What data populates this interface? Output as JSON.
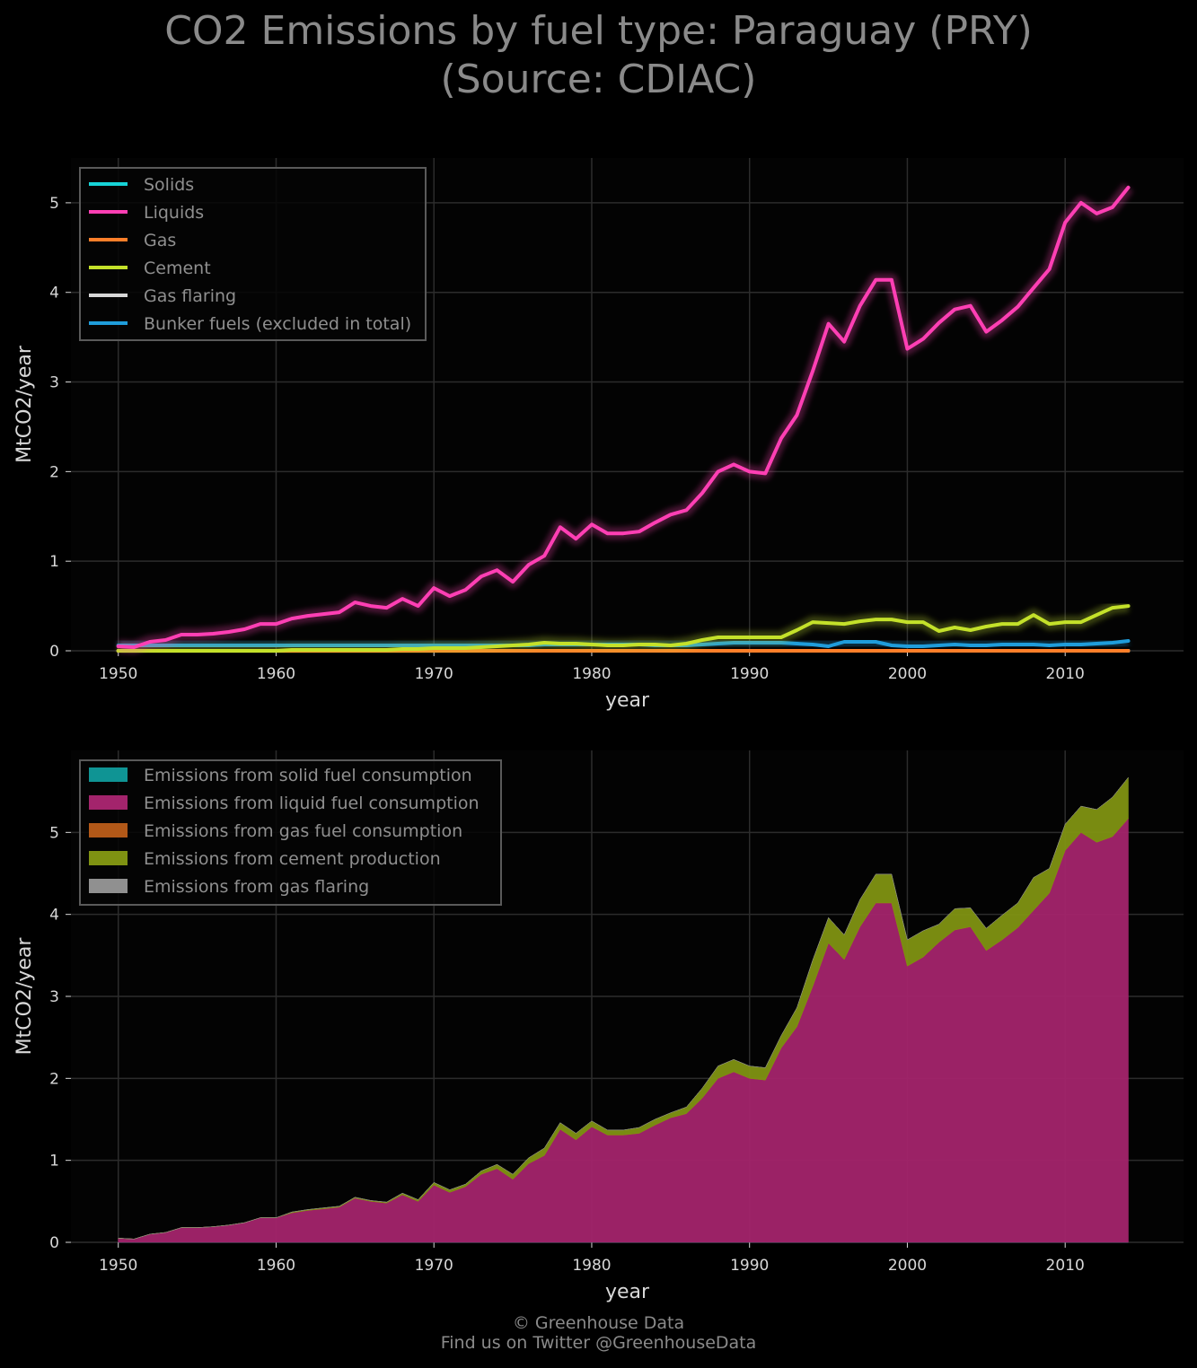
{
  "title_line1": "CO2 Emissions by fuel type: Paraguay (PRY)",
  "title_line2": "(Source: CDIAC)",
  "footer_line1": "© Greenhouse Data",
  "footer_line2": "Find us on Twitter @GreenhouseData",
  "chart_data": [
    {
      "type": "line",
      "xlabel": "year",
      "ylabel": "MtCO2/year",
      "xlim": [
        1947,
        2017.5
      ],
      "ylim": [
        0,
        5.5
      ],
      "xticks": [
        1950,
        1960,
        1970,
        1980,
        1990,
        2000,
        2010
      ],
      "yticks": [
        0,
        1,
        2,
        3,
        4,
        5
      ],
      "grid": true,
      "legend_position": "top-left",
      "x": [
        1950,
        1951,
        1952,
        1953,
        1954,
        1955,
        1956,
        1957,
        1958,
        1959,
        1960,
        1961,
        1962,
        1963,
        1964,
        1965,
        1966,
        1967,
        1968,
        1969,
        1970,
        1971,
        1972,
        1973,
        1974,
        1975,
        1976,
        1977,
        1978,
        1979,
        1980,
        1981,
        1982,
        1983,
        1984,
        1985,
        1986,
        1987,
        1988,
        1989,
        1990,
        1991,
        1992,
        1993,
        1994,
        1995,
        1996,
        1997,
        1998,
        1999,
        2000,
        2001,
        2002,
        2003,
        2004,
        2005,
        2006,
        2007,
        2008,
        2009,
        2010,
        2011,
        2012,
        2013,
        2014
      ],
      "series": [
        {
          "name": "Solids",
          "color": "#17d4d8",
          "values": [
            0.0,
            0.0,
            0.0,
            0.0,
            0.0,
            0.0,
            0.0,
            0.0,
            0.0,
            0.0,
            0.0,
            0.0,
            0.0,
            0.0,
            0.0,
            0.0,
            0.0,
            0.0,
            0.0,
            0.0,
            0.0,
            0.0,
            0.0,
            0.0,
            0.0,
            0.0,
            0.0,
            0.0,
            0.0,
            0.0,
            0.0,
            0.0,
            0.0,
            0.0,
            0.0,
            0.0,
            0.0,
            0.0,
            0.0,
            0.0,
            0.0,
            0.0,
            0.0,
            0.0,
            0.0,
            0.0,
            0.0,
            0.0,
            0.0,
            0.0,
            0.0,
            0.0,
            0.0,
            0.0,
            0.0,
            0.0,
            0.0,
            0.0,
            0.0,
            0.0,
            0.0,
            0.0,
            0.0,
            0.0,
            0.0
          ]
        },
        {
          "name": "Liquids",
          "color": "#ff3fb4",
          "values": [
            0.05,
            0.04,
            0.1,
            0.12,
            0.18,
            0.18,
            0.19,
            0.21,
            0.24,
            0.3,
            0.3,
            0.36,
            0.39,
            0.41,
            0.43,
            0.54,
            0.5,
            0.48,
            0.58,
            0.5,
            0.7,
            0.61,
            0.68,
            0.83,
            0.9,
            0.77,
            0.96,
            1.06,
            1.38,
            1.25,
            1.41,
            1.31,
            1.31,
            1.33,
            1.43,
            1.52,
            1.57,
            1.76,
            2.0,
            2.08,
            2.0,
            1.98,
            2.37,
            2.63,
            3.12,
            3.65,
            3.45,
            3.85,
            4.14,
            4.14,
            3.37,
            3.48,
            3.66,
            3.81,
            3.85,
            3.56,
            3.69,
            3.84,
            4.05,
            4.26,
            4.78,
            5.0,
            4.88,
            4.95,
            5.17
          ]
        },
        {
          "name": "Gas",
          "color": "#ff7f2a",
          "values": [
            0.0,
            0.0,
            0.0,
            0.0,
            0.0,
            0.0,
            0.0,
            0.0,
            0.0,
            0.0,
            0.0,
            0.0,
            0.0,
            0.0,
            0.0,
            0.0,
            0.0,
            0.0,
            0.0,
            0.0,
            0.0,
            0.0,
            0.0,
            0.0,
            0.0,
            0.0,
            0.0,
            0.0,
            0.0,
            0.0,
            0.0,
            0.0,
            0.0,
            0.0,
            0.0,
            0.0,
            0.0,
            0.0,
            0.0,
            0.0,
            0.0,
            0.0,
            0.0,
            0.0,
            0.0,
            0.0,
            0.0,
            0.0,
            0.0,
            0.0,
            0.0,
            0.0,
            0.0,
            0.0,
            0.0,
            0.0,
            0.0,
            0.0,
            0.0,
            0.0,
            0.0,
            0.0,
            0.0,
            0.0,
            0.0
          ]
        },
        {
          "name": "Cement",
          "color": "#c4e12a",
          "values": [
            0.0,
            0.0,
            0.0,
            0.0,
            0.0,
            0.0,
            0.0,
            0.0,
            0.0,
            0.0,
            0.0,
            0.01,
            0.01,
            0.01,
            0.01,
            0.01,
            0.01,
            0.01,
            0.02,
            0.02,
            0.03,
            0.03,
            0.03,
            0.04,
            0.05,
            0.06,
            0.07,
            0.09,
            0.08,
            0.08,
            0.07,
            0.06,
            0.06,
            0.07,
            0.07,
            0.06,
            0.08,
            0.12,
            0.15,
            0.15,
            0.15,
            0.15,
            0.15,
            0.23,
            0.32,
            0.31,
            0.3,
            0.33,
            0.35,
            0.35,
            0.32,
            0.32,
            0.22,
            0.26,
            0.23,
            0.27,
            0.3,
            0.3,
            0.4,
            0.3,
            0.32,
            0.32,
            0.4,
            0.48,
            0.5
          ]
        },
        {
          "name": "Gas flaring",
          "color": "#d8d8d8",
          "values": [
            0.0,
            0.0,
            0.0,
            0.0,
            0.0,
            0.0,
            0.0,
            0.0,
            0.0,
            0.0,
            0.0,
            0.0,
            0.0,
            0.0,
            0.0,
            0.0,
            0.0,
            0.0,
            0.0,
            0.0,
            0.0,
            0.0,
            0.0,
            0.0,
            0.0,
            0.0,
            0.0,
            0.0,
            0.0,
            0.0,
            0.0,
            0.0,
            0.0,
            0.0,
            0.0,
            0.0,
            0.0,
            0.0,
            0.0,
            0.0,
            0.0,
            0.0,
            0.0,
            0.0,
            0.0,
            0.0,
            0.0,
            0.0,
            0.0,
            0.0,
            0.0,
            0.0,
            0.0,
            0.0,
            0.0,
            0.0,
            0.0,
            0.0,
            0.0,
            0.0,
            0.0,
            0.0,
            0.0,
            0.0,
            0.0
          ]
        },
        {
          "name": "Bunker fuels (excluded in total)",
          "color": "#1f9ddb",
          "values": [
            0.06,
            0.06,
            0.06,
            0.06,
            0.06,
            0.06,
            0.06,
            0.06,
            0.06,
            0.06,
            0.06,
            0.06,
            0.06,
            0.06,
            0.06,
            0.06,
            0.06,
            0.06,
            0.06,
            0.06,
            0.06,
            0.06,
            0.06,
            0.06,
            0.06,
            0.06,
            0.06,
            0.07,
            0.07,
            0.07,
            0.07,
            0.07,
            0.07,
            0.07,
            0.06,
            0.06,
            0.06,
            0.07,
            0.08,
            0.09,
            0.09,
            0.09,
            0.09,
            0.08,
            0.07,
            0.05,
            0.1,
            0.1,
            0.1,
            0.06,
            0.05,
            0.05,
            0.06,
            0.07,
            0.06,
            0.06,
            0.07,
            0.07,
            0.07,
            0.06,
            0.07,
            0.07,
            0.08,
            0.09,
            0.11
          ]
        }
      ]
    },
    {
      "type": "area",
      "stacked": true,
      "xlabel": "year",
      "ylabel": "MtCO2/year",
      "xlim": [
        1947,
        2017.5
      ],
      "ylim": [
        0,
        6.0
      ],
      "xticks": [
        1950,
        1960,
        1970,
        1980,
        1990,
        2000,
        2010
      ],
      "yticks": [
        0,
        1,
        2,
        3,
        4,
        5
      ],
      "grid": true,
      "legend_position": "top-left",
      "series": [
        {
          "name": "Emissions from solid fuel consumption",
          "color": "#0f9494",
          "source_index": 0
        },
        {
          "name": "Emissions from liquid fuel consumption",
          "color": "#a3246c",
          "source_index": 1
        },
        {
          "name": "Emissions from gas fuel consumption",
          "color": "#b25818",
          "source_index": 2
        },
        {
          "name": "Emissions from cement production",
          "color": "#7f9212",
          "source_index": 3
        },
        {
          "name": "Emissions from gas flaring",
          "color": "#909090",
          "source_index": 4
        }
      ]
    }
  ]
}
